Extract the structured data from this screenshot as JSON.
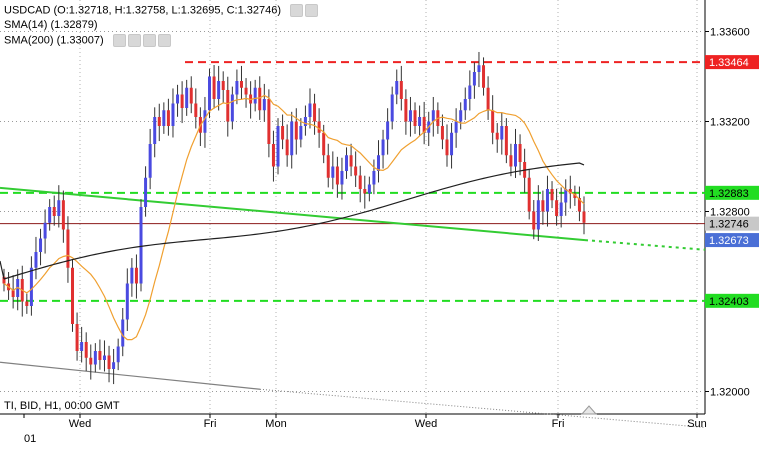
{
  "legend": {
    "ohlc": "USDCAD (O:1.32718, H:1.32758, L:1.32695, C:1.32746)",
    "sma14": "SMA(14) (1.32879)",
    "sma200": "SMA(200) (1.33007)"
  },
  "footer": {
    "info": "TI, BID, H1, 00:00 GMT"
  },
  "colors": {
    "bull": "#4a4ae0",
    "bear": "#e03030",
    "sma14": "#f0a030",
    "sma200": "#202020",
    "resistance": "#ee2222",
    "support": "#22dd22",
    "trendline": "#33cc33",
    "price_line": "#8b1a1a",
    "current_badge": "#4a6fd6"
  },
  "chart_data": {
    "type": "candlestick",
    "symbol": "USDCAD",
    "timeframe": "H1",
    "ylim": [
      1.319,
      1.3374
    ],
    "x_tick_labels": [
      {
        "label": "01",
        "row": 2
      },
      {
        "label": "Wed"
      },
      {
        "label": "Fri"
      },
      {
        "label": "Mon"
      },
      {
        "label": "Wed"
      },
      {
        "label": "Fri"
      },
      {
        "label": "Sun"
      }
    ],
    "y_ticks": [
      "1.33600",
      "1.33200",
      "1.32800",
      "1.32000"
    ],
    "horizontal_levels": [
      {
        "label": "1.33464",
        "value": 1.33464,
        "style": "dashed",
        "color_key": "resistance"
      },
      {
        "label": "1.32883",
        "value": 1.32883,
        "style": "dashed",
        "color_key": "support"
      },
      {
        "label": "1.32403",
        "value": 1.32403,
        "style": "dashed",
        "color_key": "support"
      }
    ],
    "current_price": {
      "label": "1.32746",
      "value": 1.32746
    },
    "trendline_price": {
      "label": "1.32673",
      "value": 1.32673
    },
    "ohlc": {
      "open": 1.32718,
      "high": 1.32758,
      "low": 1.32695,
      "close": 1.32746
    },
    "sma14_last": 1.32879,
    "sma200_last": 1.33007,
    "closes": [
      1.3248,
      1.3245,
      1.3242,
      1.325,
      1.324,
      1.3238,
      1.3255,
      1.3262,
      1.3268,
      1.3275,
      1.3282,
      1.3278,
      1.3285,
      1.3272,
      1.3255,
      1.323,
      1.3218,
      1.3222,
      1.3215,
      1.3212,
      1.3218,
      1.3214,
      1.3216,
      1.321,
      1.3213,
      1.322,
      1.3232,
      1.3248,
      1.3255,
      1.3248,
      1.3282,
      1.3295,
      1.331,
      1.3322,
      1.3318,
      1.3325,
      1.3318,
      1.3328,
      1.3332,
      1.3326,
      1.3335,
      1.3328,
      1.3322,
      1.3315,
      1.3325,
      1.334,
      1.333,
      1.3338,
      1.3334,
      1.332,
      1.3332,
      1.3338,
      1.3335,
      1.3332,
      1.3328,
      1.3335,
      1.3325,
      1.333,
      1.331,
      1.33,
      1.3318,
      1.3312,
      1.3305,
      1.332,
      1.3312,
      1.3318,
      1.3322,
      1.3328,
      1.332,
      1.3315,
      1.3305,
      1.3295,
      1.33,
      1.3292,
      1.3298,
      1.3305,
      1.33,
      1.3296,
      1.329,
      1.3288,
      1.3292,
      1.3298,
      1.3305,
      1.3312,
      1.332,
      1.3332,
      1.3338,
      1.333,
      1.332,
      1.3325,
      1.3318,
      1.3322,
      1.3315,
      1.332,
      1.3325,
      1.3318,
      1.3312,
      1.3305,
      1.3315,
      1.332,
      1.3325,
      1.333,
      1.3336,
      1.3342,
      1.3345,
      1.3335,
      1.3325,
      1.3315,
      1.3312,
      1.3318,
      1.3305,
      1.33,
      1.331,
      1.3302,
      1.3295,
      1.328,
      1.3272,
      1.3285,
      1.328,
      1.329,
      1.3285,
      1.3278,
      1.3284,
      1.329,
      1.3288,
      1.3286,
      1.328,
      1.3275
    ]
  }
}
